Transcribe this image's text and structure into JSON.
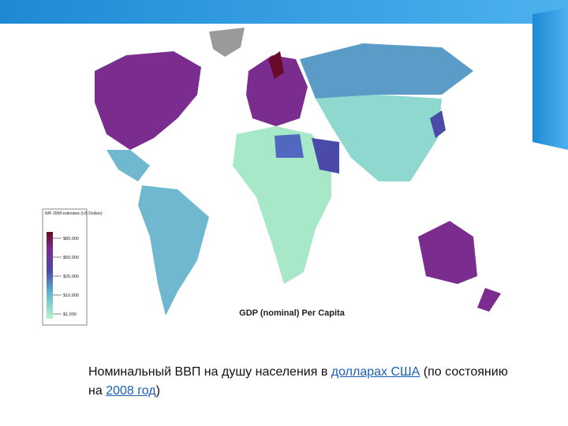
{
  "map": {
    "title": "GDP (nominal) Per Capita",
    "legend": {
      "title": "IMF 2008 estimates (US Dollars)",
      "labels": [
        "$80,000",
        "$50,000",
        "$25,000",
        "$10,000",
        "$1,000"
      ]
    }
  },
  "caption": {
    "parts": [
      "Номинальный ВВП на душу населения в ",
      "долларах США",
      " (по состоянию на ",
      "2008 год",
      ")"
    ]
  }
}
